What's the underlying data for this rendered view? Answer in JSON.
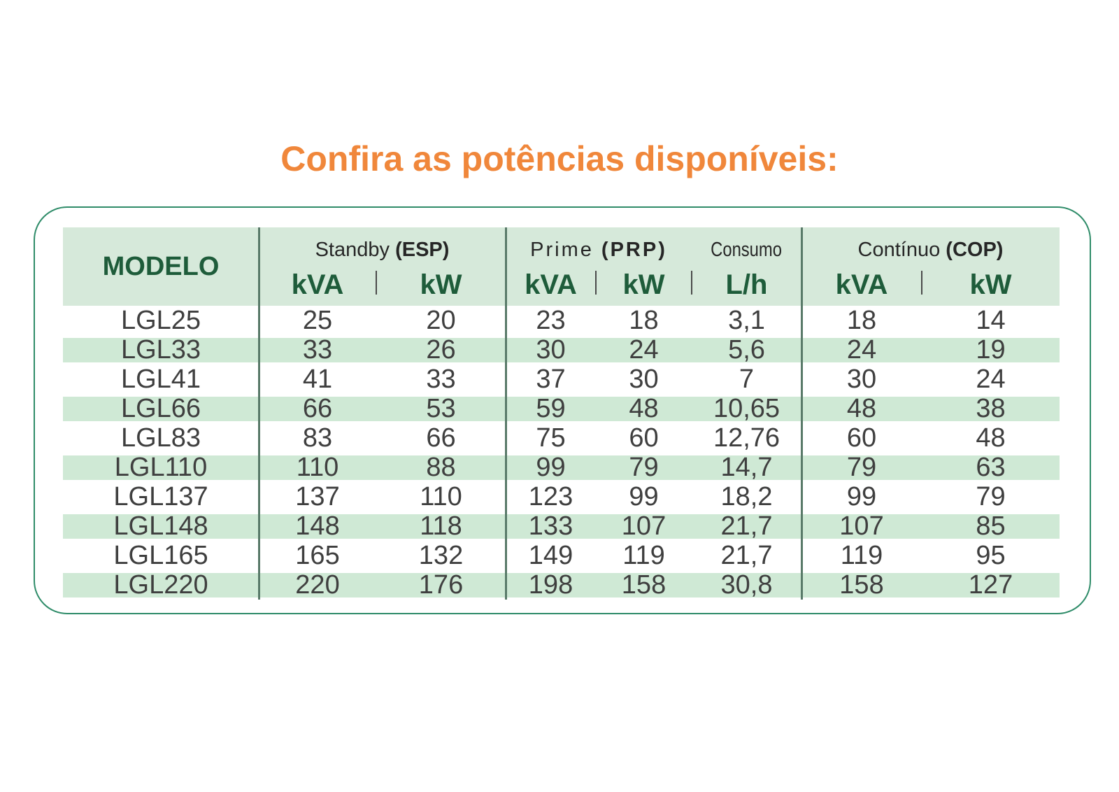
{
  "title": "Confira as potências disponíveis:",
  "table": {
    "header": {
      "modelo": "MODELO",
      "groups": [
        {
          "name": "Standby ",
          "abbr": "(ESP)",
          "units": [
            "kVA",
            "kW"
          ]
        },
        {
          "name": "Prime ",
          "abbr": "(PRP)",
          "units": [
            "kVA",
            "kW"
          ]
        },
        {
          "name": "Consumo",
          "abbr": "",
          "units": [
            "L/h"
          ]
        },
        {
          "name": "Contínuo ",
          "abbr": "(COP)",
          "units": [
            "kVA",
            "kW"
          ]
        }
      ]
    },
    "rows": [
      {
        "cells": [
          "LGL25",
          "25",
          "20",
          "23",
          "18",
          "3,1",
          "18",
          "14"
        ]
      },
      {
        "cells": [
          "LGL33",
          "33",
          "26",
          "30",
          "24",
          "5,6",
          "24",
          "19"
        ]
      },
      {
        "cells": [
          "LGL41",
          "41",
          "33",
          "37",
          "30",
          "7",
          "30",
          "24"
        ]
      },
      {
        "cells": [
          "LGL66",
          "66",
          "53",
          "59",
          "48",
          "10,65",
          "48",
          "38"
        ]
      },
      {
        "cells": [
          "LGL83",
          "83",
          "66",
          "75",
          "60",
          "12,76",
          "60",
          "48"
        ]
      },
      {
        "cells": [
          "LGL110",
          "110",
          "88",
          "99",
          "79",
          "14,7",
          "79",
          "63"
        ]
      },
      {
        "cells": [
          "LGL137",
          "137",
          "110",
          "123",
          "99",
          "18,2",
          "99",
          "79"
        ]
      },
      {
        "cells": [
          "LGL148",
          "148",
          "118",
          "133",
          "107",
          "21,7",
          "107",
          "85"
        ]
      },
      {
        "cells": [
          "LGL165",
          "165",
          "132",
          "149",
          "119",
          "21,7",
          "119",
          "95"
        ]
      },
      {
        "cells": [
          "LGL220",
          "220",
          "176",
          "198",
          "158",
          "30,8",
          "158",
          "127"
        ]
      }
    ]
  },
  "colors": {
    "accent_orange": "#F0873B",
    "dark_green_text": "#1E5C3A",
    "header_bg": "#D6E9DA",
    "stripe_green": "#CFE9D5",
    "panel_border_green": "#2F8C69",
    "group_divider": "#597A69",
    "data_text": "#3F3F3F"
  }
}
